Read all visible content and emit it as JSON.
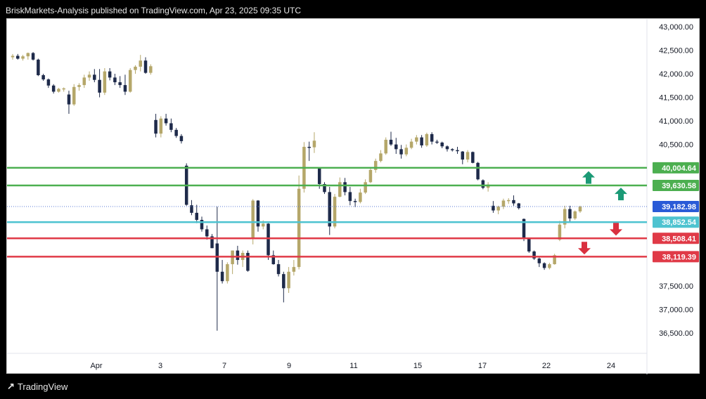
{
  "header": {
    "text": "BriskMarkets-Analysis published on TradingView.com, Apr 23, 2025 09:35 UTC"
  },
  "footer": {
    "brand": "TradingView",
    "logo_icon": "tradingview-logo-icon"
  },
  "colors": {
    "bull": "#b5a76a",
    "bear": "#1e2a4a",
    "green_line": "#4caf50",
    "cyan_line": "#4ec3d0",
    "red_line": "#e03a47",
    "current_label": "#2a5bd7",
    "arrow_up": "#1b9a76",
    "arrow_down": "#d9303f"
  },
  "chart_data": {
    "type": "candlestick",
    "y_axis": {
      "ticks": [
        "43,000.00",
        "42,500.00",
        "42,000.00",
        "41,500.00",
        "41,000.00",
        "40,500.00",
        "37,500.00",
        "37,000.00",
        "36,500.00"
      ],
      "tick_values": [
        43000,
        42500,
        42000,
        41500,
        41000,
        40500,
        37500,
        37000,
        36500
      ],
      "range": [
        36200,
        43250
      ]
    },
    "x_axis": {
      "ticks": [
        "Apr",
        "3",
        "7",
        "9",
        "11",
        "15",
        "17",
        "22",
        "24"
      ]
    },
    "levels": [
      {
        "label": "40,004.64",
        "value": 40004.64,
        "color": "green"
      },
      {
        "label": "39,630.58",
        "value": 39630.58,
        "color": "green"
      },
      {
        "label": "38,852.54",
        "value": 38852.54,
        "color": "cyan"
      },
      {
        "label": "38,508.41",
        "value": 38508.41,
        "color": "red"
      },
      {
        "label": "38,119.39",
        "value": 38119.39,
        "color": "red"
      }
    ],
    "current_price": {
      "label": "39,182.98",
      "value": 39182.98
    },
    "arrows": [
      {
        "direction": "up",
        "price": 39800
      },
      {
        "direction": "up",
        "price": 39450
      },
      {
        "direction": "down",
        "price": 38700
      },
      {
        "direction": "down",
        "price": 38300
      }
    ],
    "candles": [
      [
        42350,
        42420,
        42300,
        42380
      ],
      [
        42380,
        42420,
        42300,
        42320
      ],
      [
        42320,
        42400,
        42280,
        42370
      ],
      [
        42370,
        42450,
        42300,
        42440
      ],
      [
        42440,
        42460,
        42280,
        42300
      ],
      [
        42300,
        42320,
        41950,
        41970
      ],
      [
        41970,
        42000,
        41850,
        41880
      ],
      [
        41880,
        41900,
        41700,
        41750
      ],
      [
        41750,
        41780,
        41580,
        41620
      ],
      [
        41620,
        41700,
        41600,
        41680
      ],
      [
        41680,
        41710,
        41620,
        41690
      ],
      [
        41560,
        41640,
        41150,
        41350
      ],
      [
        41350,
        41780,
        41320,
        41720
      ],
      [
        41720,
        41800,
        41640,
        41760
      ],
      [
        41760,
        41980,
        41700,
        41920
      ],
      [
        41920,
        42050,
        41850,
        41980
      ],
      [
        41980,
        42100,
        41820,
        41870
      ],
      [
        41870,
        42100,
        41500,
        41600
      ],
      [
        41600,
        42120,
        41550,
        42050
      ],
      [
        42050,
        42120,
        41860,
        41920
      ],
      [
        41920,
        42000,
        41760,
        41820
      ],
      [
        41820,
        41950,
        41700,
        41760
      ],
      [
        41760,
        41980,
        41550,
        41620
      ],
      [
        41620,
        42120,
        41600,
        42080
      ],
      [
        42080,
        42180,
        42000,
        42150
      ],
      [
        42150,
        42400,
        42050,
        42280
      ],
      [
        42280,
        42350,
        42000,
        42020
      ],
      [
        42020,
        42200,
        41980,
        42160
      ],
      [
        41020,
        41150,
        40650,
        40730
      ],
      [
        40730,
        41100,
        40650,
        41050
      ],
      [
        41050,
        41150,
        40900,
        40950
      ],
      [
        40950,
        41050,
        40760,
        40810
      ],
      [
        40810,
        40850,
        40640,
        40680
      ],
      [
        40680,
        40720,
        40520,
        40570
      ],
      [
        40050,
        40100,
        39200,
        39220
      ],
      [
        39210,
        39320,
        39000,
        39050
      ],
      [
        39050,
        39220,
        38830,
        38900
      ],
      [
        38900,
        38970,
        38650,
        38700
      ],
      [
        38700,
        38780,
        38480,
        38550
      ],
      [
        38550,
        38600,
        38300,
        38300
      ],
      [
        38400,
        39180,
        36550,
        37800
      ],
      [
        37800,
        38050,
        37550,
        37600
      ],
      [
        37600,
        38000,
        37550,
        37960
      ],
      [
        37960,
        38250,
        37750,
        38250
      ],
      [
        38250,
        38350,
        37950,
        38050
      ],
      [
        38050,
        38250,
        37900,
        38200
      ],
      [
        38200,
        38250,
        37800,
        37820
      ],
      [
        38500,
        39340,
        38380,
        39310
      ],
      [
        39310,
        39320,
        38650,
        38760
      ],
      [
        38760,
        38890,
        38700,
        38820
      ],
      [
        38820,
        38830,
        38050,
        38150
      ],
      [
        38150,
        38250,
        37950,
        37960
      ],
      [
        37960,
        38050,
        37700,
        37750
      ],
      [
        37750,
        37800,
        37150,
        37450
      ],
      [
        37450,
        37900,
        37350,
        37800
      ],
      [
        37800,
        38050,
        37720,
        37900
      ],
      [
        37900,
        39840,
        37850,
        39560
      ],
      [
        39560,
        40550,
        39480,
        40450
      ],
      [
        40450,
        40560,
        40150,
        40440
      ],
      [
        40440,
        40760,
        40320,
        40580
      ],
      [
        40000,
        40010,
        39560,
        39660
      ],
      [
        39660,
        39700,
        39450,
        39490
      ],
      [
        39490,
        39600,
        38580,
        38760
      ],
      [
        38760,
        39450,
        38720,
        39390
      ],
      [
        39390,
        39800,
        39380,
        39700
      ],
      [
        39700,
        39790,
        39420,
        39490
      ],
      [
        39490,
        39600,
        39210,
        39300
      ],
      [
        39300,
        39350,
        39170,
        39280
      ],
      [
        39280,
        39560,
        39250,
        39480
      ],
      [
        39480,
        39760,
        39450,
        39700
      ],
      [
        39700,
        40010,
        39680,
        39960
      ],
      [
        39960,
        40200,
        39900,
        40150
      ],
      [
        40150,
        40380,
        40120,
        40310
      ],
      [
        40310,
        40650,
        40280,
        40600
      ],
      [
        40600,
        40770,
        40470,
        40500
      ],
      [
        40500,
        40640,
        40300,
        40400
      ],
      [
        40400,
        40490,
        40200,
        40290
      ],
      [
        40290,
        40500,
        40250,
        40430
      ],
      [
        40430,
        40620,
        40400,
        40560
      ],
      [
        40560,
        40700,
        40500,
        40650
      ],
      [
        40650,
        40700,
        40430,
        40480
      ],
      [
        40480,
        40750,
        40450,
        40720
      ],
      [
        40720,
        40760,
        40500,
        40560
      ],
      [
        40560,
        40600,
        40510,
        40540
      ],
      [
        40540,
        40560,
        40420,
        40460
      ],
      [
        40460,
        40480,
        40350,
        40400
      ],
      [
        40400,
        40420,
        40350,
        40380
      ],
      [
        40380,
        40450,
        40300,
        40360
      ],
      [
        40350,
        40360,
        40080,
        40180
      ],
      [
        40180,
        40380,
        40120,
        40340
      ],
      [
        40340,
        40350,
        40100,
        40110
      ],
      [
        40110,
        40130,
        39740,
        39760
      ],
      [
        39740,
        39760,
        39550,
        39580
      ],
      [
        39580,
        39700,
        39500,
        39650
      ],
      [
        39200,
        39300,
        39050,
        39100
      ],
      [
        39100,
        39200,
        39020,
        39180
      ],
      [
        39180,
        39350,
        39130,
        39310
      ],
      [
        39310,
        39360,
        39240,
        39320
      ],
      [
        39320,
        39420,
        39200,
        39250
      ],
      [
        39250,
        39260,
        39120,
        39150
      ],
      [
        38920,
        38930,
        38450,
        38500
      ],
      [
        38500,
        38520,
        38200,
        38230
      ],
      [
        38230,
        38250,
        38050,
        38080
      ],
      [
        38080,
        38100,
        37900,
        37980
      ],
      [
        37980,
        38000,
        37840,
        37880
      ],
      [
        37880,
        37990,
        37850,
        37960
      ],
      [
        37960,
        38180,
        37950,
        38150
      ],
      [
        38480,
        38880,
        38450,
        38800
      ],
      [
        38800,
        39200,
        38720,
        39130
      ],
      [
        39130,
        39200,
        38870,
        38930
      ],
      [
        38930,
        39100,
        38900,
        39080
      ],
      [
        39080,
        39200,
        39050,
        39180
      ]
    ]
  }
}
